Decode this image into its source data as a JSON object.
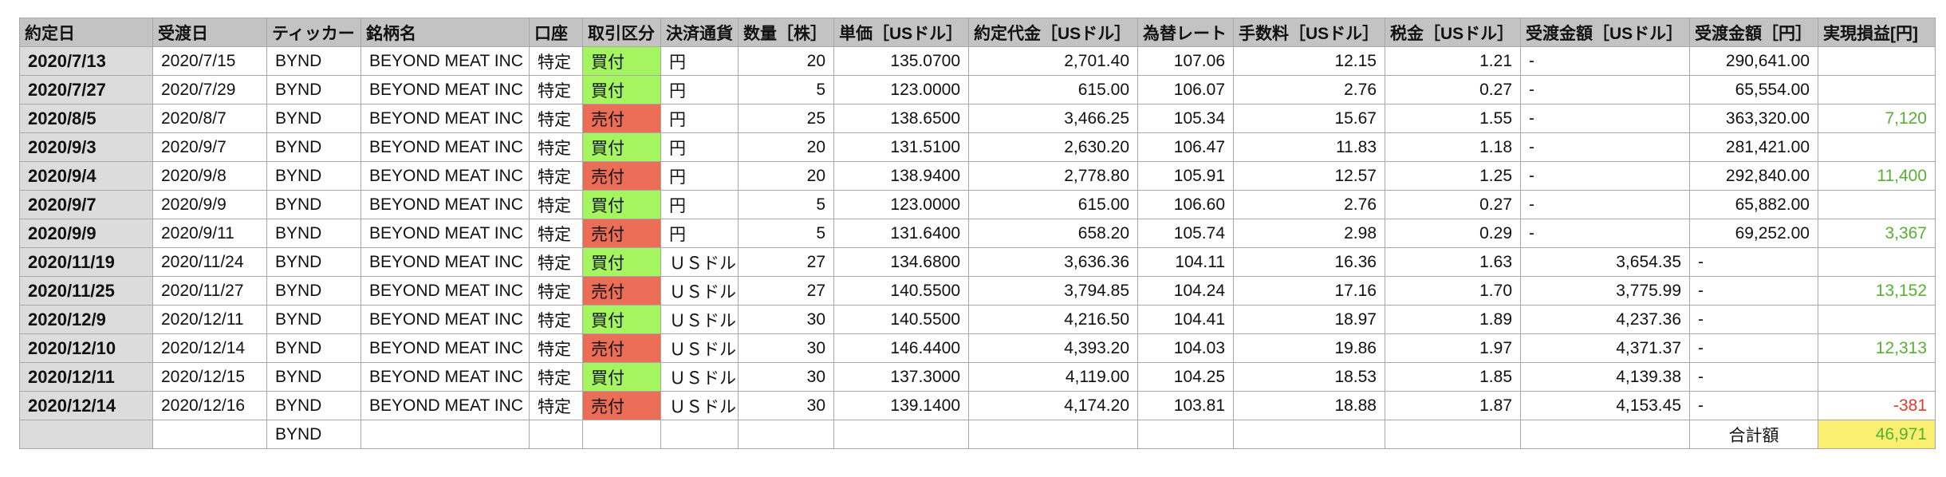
{
  "colors": {
    "header_bg": "#c3c3c3",
    "date_bg": "#dcdcdc",
    "buy": "#a4f560",
    "sell": "#ec6d56",
    "profit": "#55b033",
    "loss": "#e33a2a",
    "total_bg": "#fbef72"
  },
  "headers": [
    "約定日",
    "受渡日",
    "ティッカー",
    "銘柄名",
    "口座",
    "取引区分",
    "決済通貨",
    "数量［株］",
    "単価［USドル］",
    "約定代金［USドル］",
    "為替レート",
    "手数料［USドル］",
    "税金［USドル］",
    "受渡金額［USドル］",
    "受渡金額［円］",
    "実現損益[円]"
  ],
  "rows": [
    [
      "2020/7/13",
      "2020/7/15",
      "BYND",
      "BEYOND MEAT INC",
      "特定",
      "買付",
      "円",
      "20",
      "135.0700",
      "2,701.40",
      "107.06",
      "12.15",
      "1.21",
      "-",
      "290,641.00",
      ""
    ],
    [
      "2020/7/27",
      "2020/7/29",
      "BYND",
      "BEYOND MEAT INC",
      "特定",
      "買付",
      "円",
      "5",
      "123.0000",
      "615.00",
      "106.07",
      "2.76",
      "0.27",
      "-",
      "65,554.00",
      ""
    ],
    [
      "2020/8/5",
      "2020/8/7",
      "BYND",
      "BEYOND MEAT INC",
      "特定",
      "売付",
      "円",
      "25",
      "138.6500",
      "3,466.25",
      "105.34",
      "15.67",
      "1.55",
      "-",
      "363,320.00",
      "7,120"
    ],
    [
      "2020/9/3",
      "2020/9/7",
      "BYND",
      "BEYOND MEAT INC",
      "特定",
      "買付",
      "円",
      "20",
      "131.5100",
      "2,630.20",
      "106.47",
      "11.83",
      "1.18",
      "-",
      "281,421.00",
      ""
    ],
    [
      "2020/9/4",
      "2020/9/8",
      "BYND",
      "BEYOND MEAT INC",
      "特定",
      "売付",
      "円",
      "20",
      "138.9400",
      "2,778.80",
      "105.91",
      "12.57",
      "1.25",
      "-",
      "292,840.00",
      "11,400"
    ],
    [
      "2020/9/7",
      "2020/9/9",
      "BYND",
      "BEYOND MEAT INC",
      "特定",
      "買付",
      "円",
      "5",
      "123.0000",
      "615.00",
      "106.60",
      "2.76",
      "0.27",
      "-",
      "65,882.00",
      ""
    ],
    [
      "2020/9/9",
      "2020/9/11",
      "BYND",
      "BEYOND MEAT INC",
      "特定",
      "売付",
      "円",
      "5",
      "131.6400",
      "658.20",
      "105.74",
      "2.98",
      "0.29",
      "-",
      "69,252.00",
      "3,367"
    ],
    [
      "2020/11/19",
      "2020/11/24",
      "BYND",
      "BEYOND MEAT INC",
      "特定",
      "買付",
      "ＵＳドル",
      "27",
      "134.6800",
      "3,636.36",
      "104.11",
      "16.36",
      "1.63",
      "3,654.35",
      "-",
      ""
    ],
    [
      "2020/11/25",
      "2020/11/27",
      "BYND",
      "BEYOND MEAT INC",
      "特定",
      "売付",
      "ＵＳドル",
      "27",
      "140.5500",
      "3,794.85",
      "104.24",
      "17.16",
      "1.70",
      "3,775.99",
      "-",
      "13,152"
    ],
    [
      "2020/12/9",
      "2020/12/11",
      "BYND",
      "BEYOND MEAT INC",
      "特定",
      "買付",
      "ＵＳドル",
      "30",
      "140.5500",
      "4,216.50",
      "104.41",
      "18.97",
      "1.89",
      "4,237.36",
      "-",
      ""
    ],
    [
      "2020/12/10",
      "2020/12/14",
      "BYND",
      "BEYOND MEAT INC",
      "特定",
      "売付",
      "ＵＳドル",
      "30",
      "146.4400",
      "4,393.20",
      "104.03",
      "19.86",
      "1.97",
      "4,371.37",
      "-",
      "12,313"
    ],
    [
      "2020/12/11",
      "2020/12/15",
      "BYND",
      "BEYOND MEAT INC",
      "特定",
      "買付",
      "ＵＳドル",
      "30",
      "137.3000",
      "4,119.00",
      "104.25",
      "18.53",
      "1.85",
      "4,139.38",
      "-",
      ""
    ],
    [
      "2020/12/14",
      "2020/12/16",
      "BYND",
      "BEYOND MEAT INC",
      "特定",
      "売付",
      "ＵＳドル",
      "30",
      "139.1400",
      "4,174.20",
      "103.81",
      "18.88",
      "1.87",
      "4,153.45",
      "-",
      "-381"
    ]
  ],
  "footer": {
    "ticker": "BYND",
    "total_label": "合計額",
    "total_value": "46,971"
  }
}
